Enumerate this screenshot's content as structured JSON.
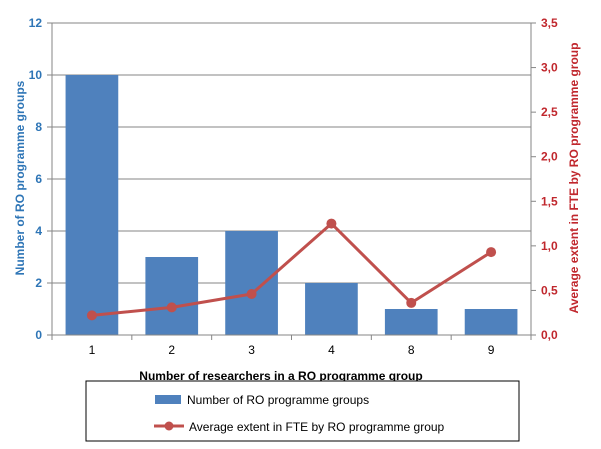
{
  "chart_data": {
    "type": "bar",
    "categories": [
      "1",
      "2",
      "3",
      "4",
      "8",
      "9"
    ],
    "series": [
      {
        "name": "Number of RO programme groups",
        "type": "bar",
        "axis": "left",
        "color": "#4f81bd",
        "values": [
          10,
          3,
          4,
          2,
          1,
          1
        ]
      },
      {
        "name": "Average extent in FTE by RO programme group",
        "type": "line",
        "axis": "right",
        "color": "#c0504d",
        "values": [
          0.22,
          0.31,
          0.46,
          1.25,
          0.36,
          0.93
        ]
      }
    ],
    "xlabel": "Number of researchers in a RO programme group",
    "ylabel": "Number of RO programme groups",
    "y2label": "Average extent in FTE by RO programme group",
    "ylim": [
      0,
      12
    ],
    "y2lim": [
      0,
      3.5
    ],
    "yticks": [
      "0",
      "2",
      "4",
      "6",
      "8",
      "10",
      "12"
    ],
    "y2ticks": [
      "0,0",
      "0,5",
      "1,0",
      "1,5",
      "2,0",
      "2,5",
      "3,0",
      "3,5"
    ],
    "grid": true,
    "legend_position": "bottom",
    "colors": {
      "left_axis": "#2e75b6",
      "right_axis": "#c0272d",
      "grid": "#868686"
    }
  }
}
